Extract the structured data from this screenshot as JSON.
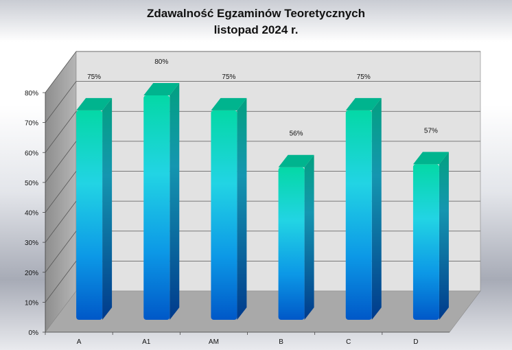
{
  "chart_data": {
    "type": "bar",
    "title": "Zdawalność Egzaminów  Teoretycznych",
    "subtitle": "listopad 2024  r.",
    "categories": [
      "A",
      "A1",
      "AM",
      "B",
      "C",
      "D"
    ],
    "values": [
      75,
      80,
      75,
      56,
      75,
      57
    ],
    "data_labels": [
      "75%",
      "80%",
      "75%",
      "56%",
      "75%",
      "57%"
    ],
    "ylim": [
      0,
      80
    ],
    "yticks": [
      "0%",
      "10%",
      "20%",
      "30%",
      "40%",
      "50%",
      "60%",
      "70%",
      "80%"
    ],
    "grid": true,
    "legend": "none",
    "colors": {
      "bar_top": "#00cfa8",
      "bar_mid": "#1fd0e6",
      "bar_bottom": "#0058c8",
      "wall": "#e2e2e2",
      "floor": "#a9a9a9"
    }
  }
}
